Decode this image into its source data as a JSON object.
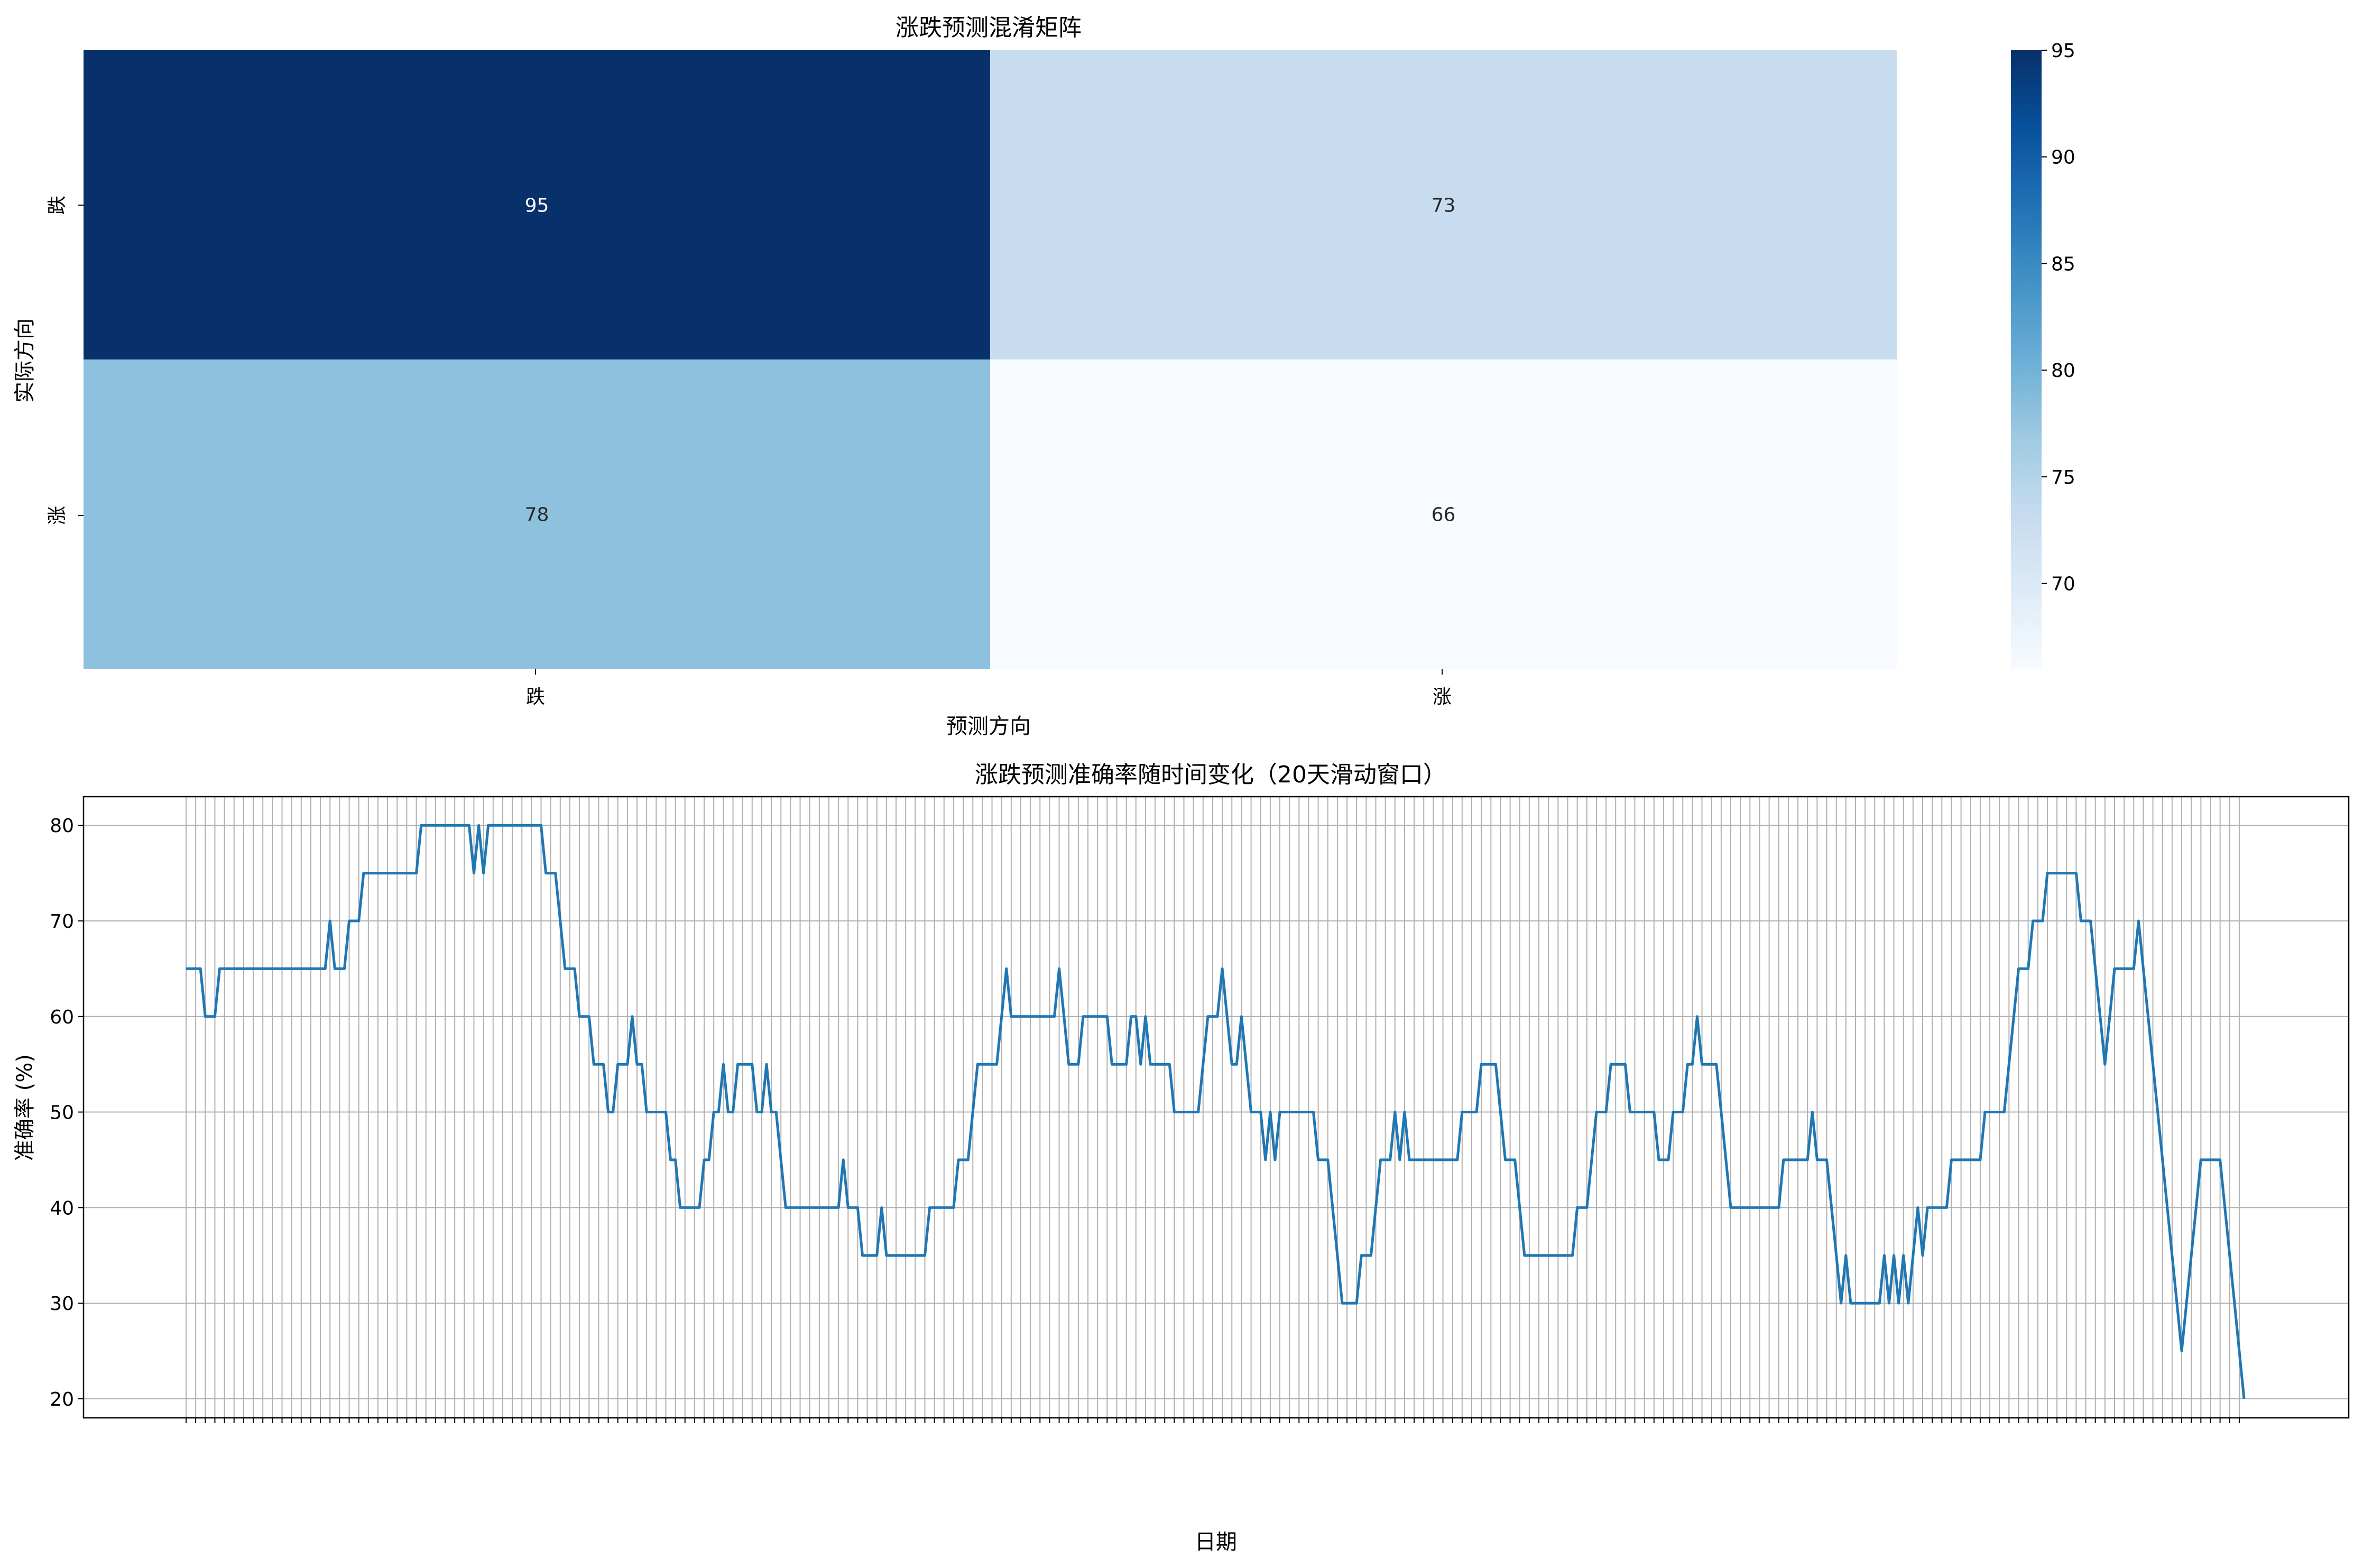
{
  "chart_data": [
    {
      "type": "heatmap",
      "title": "涨跌预测混淆矩阵",
      "xlabel": "预测方向",
      "ylabel": "实际方向",
      "x_categories": [
        "跌",
        "涨"
      ],
      "y_categories": [
        "跌",
        "涨"
      ],
      "values": [
        [
          95,
          73
        ],
        [
          78,
          66
        ]
      ],
      "colormap": "Blues",
      "colorbar": {
        "min": 66,
        "max": 95,
        "ticks": [
          "70",
          "75",
          "80",
          "85",
          "90",
          "95"
        ]
      }
    },
    {
      "type": "line",
      "title": "涨跌预测准确率随时间变化（20天滑动窗口）",
      "xlabel": "日期",
      "ylabel": "准确率 (%)",
      "ylim": [
        18,
        83
      ],
      "yticks": [
        "20",
        "30",
        "40",
        "50",
        "60",
        "70",
        "80"
      ],
      "grid": true,
      "series": [
        {
          "color": "#1f77b4",
          "values": [
            65,
            65,
            65,
            65,
            60,
            60,
            60,
            65,
            65,
            65,
            65,
            65,
            65,
            65,
            65,
            65,
            65,
            65,
            65,
            65,
            65,
            65,
            65,
            65,
            65,
            65,
            65,
            65,
            65,
            65,
            70,
            65,
            65,
            65,
            70,
            70,
            70,
            75,
            75,
            75,
            75,
            75,
            75,
            75,
            75,
            75,
            75,
            75,
            75,
            80,
            80,
            80,
            80,
            80,
            80,
            80,
            80,
            80,
            80,
            80,
            75,
            80,
            75,
            80,
            80,
            80,
            80,
            80,
            80,
            80,
            80,
            80,
            80,
            80,
            80,
            75,
            75,
            75,
            70,
            65,
            65,
            65,
            60,
            60,
            60,
            55,
            55,
            55,
            50,
            50,
            55,
            55,
            55,
            60,
            55,
            55,
            50,
            50,
            50,
            50,
            50,
            45,
            45,
            40,
            40,
            40,
            40,
            40,
            45,
            45,
            50,
            50,
            55,
            50,
            50,
            55,
            55,
            55,
            55,
            50,
            50,
            55,
            50,
            50,
            45,
            40,
            40,
            40,
            40,
            40,
            40,
            40,
            40,
            40,
            40,
            40,
            40,
            45,
            40,
            40,
            40,
            35,
            35,
            35,
            35,
            40,
            35,
            35,
            35,
            35,
            35,
            35,
            35,
            35,
            35,
            40,
            40,
            40,
            40,
            40,
            40,
            45,
            45,
            45,
            50,
            55,
            55,
            55,
            55,
            55,
            60,
            65,
            60,
            60,
            60,
            60,
            60,
            60,
            60,
            60,
            60,
            60,
            65,
            60,
            55,
            55,
            55,
            60,
            60,
            60,
            60,
            60,
            60,
            55,
            55,
            55,
            55,
            60,
            60,
            55,
            60,
            55,
            55,
            55,
            55,
            55,
            50,
            50,
            50,
            50,
            50,
            50,
            55,
            60,
            60,
            60,
            65,
            60,
            55,
            55,
            60,
            55,
            50,
            50,
            50,
            45,
            50,
            45,
            50,
            50,
            50,
            50,
            50,
            50,
            50,
            50,
            45,
            45,
            45,
            40,
            35,
            30,
            30,
            30,
            30,
            35,
            35,
            35,
            40,
            45,
            45,
            45,
            50,
            45,
            50,
            45,
            45,
            45,
            45,
            45,
            45,
            45,
            45,
            45,
            45,
            45,
            50,
            50,
            50,
            50,
            55,
            55,
            55,
            55,
            50,
            45,
            45,
            45,
            40,
            35,
            35,
            35,
            35,
            35,
            35,
            35,
            35,
            35,
            35,
            35,
            40,
            40,
            40,
            45,
            50,
            50,
            50,
            55,
            55,
            55,
            55,
            50,
            50,
            50,
            50,
            50,
            50,
            45,
            45,
            45,
            50,
            50,
            50,
            55,
            55,
            60,
            55,
            55,
            55,
            55,
            50,
            45,
            40,
            40,
            40,
            40,
            40,
            40,
            40,
            40,
            40,
            40,
            40,
            45,
            45,
            45,
            45,
            45,
            45,
            50,
            45,
            45,
            45,
            40,
            35,
            30,
            35,
            30,
            30,
            30,
            30,
            30,
            30,
            30,
            35,
            30,
            35,
            30,
            35,
            30,
            35,
            40,
            35,
            40,
            40,
            40,
            40,
            40,
            45,
            45,
            45,
            45,
            45,
            45,
            45,
            50,
            50,
            50,
            50,
            50,
            55,
            60,
            65,
            65,
            65,
            70,
            70,
            70,
            75,
            75,
            75,
            75,
            75,
            75,
            75,
            70,
            70,
            70,
            65,
            60,
            55,
            60,
            65,
            65,
            65,
            65,
            65,
            70,
            65,
            60,
            55,
            50,
            45,
            40,
            35,
            30,
            25,
            30,
            35,
            40,
            45,
            45,
            45,
            45,
            45,
            40,
            35,
            30,
            25,
            20
          ]
        }
      ]
    }
  ]
}
